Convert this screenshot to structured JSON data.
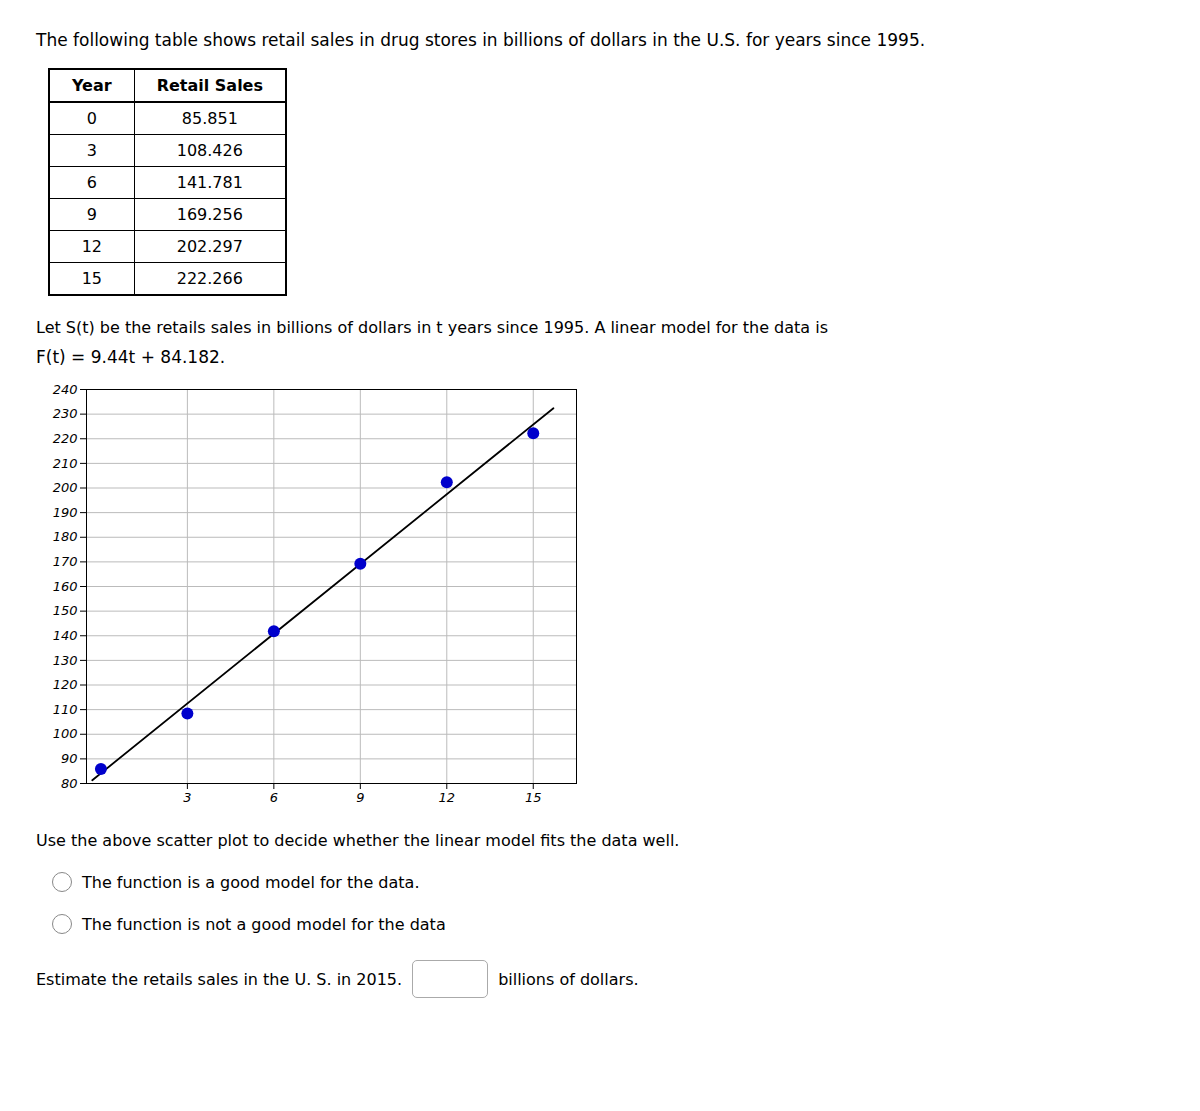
{
  "chart_data": {
    "type": "scatter",
    "title": "The following table shows retail sales in drug stores in billions of dollars in the U.S. for years since 1995.",
    "table": {
      "columns": [
        "Year",
        "Retail Sales"
      ],
      "rows": [
        [
          0,
          85.851
        ],
        [
          3,
          108.426
        ],
        [
          6,
          141.781
        ],
        [
          9,
          169.256
        ],
        [
          12,
          202.297
        ],
        [
          15,
          222.266
        ]
      ]
    },
    "annotations": [
      "Let S(t) be the retails sales in billions of dollars in t years since 1995. A linear model for the data is",
      "F(t) = 9.44t + 84.182.",
      "Use the above scatter plot to decide whether the linear model fits the data well.",
      "The function is a good model for the data.",
      "The function is not a good model for the data",
      "Estimate the retails sales in the U. S. in 2015.",
      "billions of dollars."
    ],
    "series": [
      {
        "type": "scatter",
        "color": "#0000CC",
        "x": [
          0,
          3,
          6,
          9,
          12,
          15
        ],
        "values": [
          85.851,
          108.426,
          141.781,
          169.256,
          202.297,
          222.266
        ]
      },
      {
        "type": "line",
        "color": "#000000",
        "x": [
          -0.3,
          15.7
        ],
        "values": [
          81.35,
          232.39
        ]
      }
    ],
    "xlim": [
      -0.5,
      16.5
    ],
    "xticks": [
      3,
      6,
      9,
      12,
      15
    ],
    "ylim": [
      80,
      240
    ],
    "yticks": [
      80,
      90,
      100,
      110,
      120,
      130,
      140,
      150,
      160,
      170,
      180,
      190,
      200,
      210,
      220,
      230,
      240
    ],
    "grid": true
  }
}
